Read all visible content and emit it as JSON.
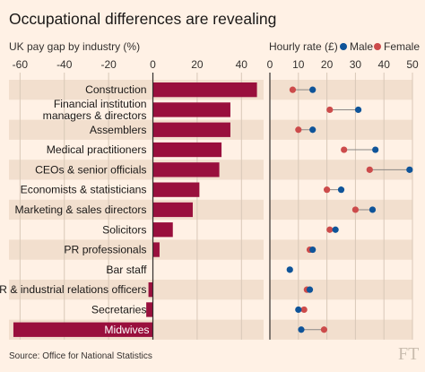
{
  "chart_data": [
    {
      "type": "bar",
      "orientation": "horizontal",
      "subtitle": "UK pay gap by industry (%)",
      "categories": [
        "Construction",
        "Financial institution managers & directors",
        "Assemblers",
        "Medical practitioners",
        "CEOs & senior officials",
        "Economists & statisticians",
        "Marketing & sales directors",
        "Solicitors",
        "PR professionals",
        "Bar staff",
        "HR & industrial relations officers",
        "Secretaries",
        "Midwives"
      ],
      "category_lines": [
        [
          "Construction"
        ],
        [
          "Financial institution",
          "managers & directors"
        ],
        [
          "Assemblers"
        ],
        [
          "Medical practitioners"
        ],
        [
          "CEOs & senior officials"
        ],
        [
          "Economists & statisticians"
        ],
        [
          "Marketing & sales directors"
        ],
        [
          "Solicitors"
        ],
        [
          "PR professionals"
        ],
        [
          "Bar staff"
        ],
        [
          "HR & industrial relations officers"
        ],
        [
          "Secretaries"
        ],
        [
          "Midwives"
        ]
      ],
      "values": [
        47,
        35,
        35,
        31,
        30,
        21,
        18,
        9,
        3,
        0,
        -2,
        -3,
        -63
      ],
      "xlim": [
        -65,
        50
      ],
      "xticks": [
        -60,
        -40,
        -20,
        0,
        20,
        40
      ],
      "bar_color": "#990f3d",
      "grid": true
    },
    {
      "type": "dot",
      "subtitle": "Hourly rate (£)",
      "series": [
        {
          "name": "Male",
          "color": "#0f5499",
          "values": [
            15,
            31,
            15,
            37,
            49,
            25,
            36,
            23,
            15,
            7,
            14,
            10,
            11
          ]
        },
        {
          "name": "Female",
          "color": "#cc4b4b",
          "values": [
            8,
            21,
            10,
            26,
            35,
            20,
            30,
            21,
            14,
            null,
            13,
            12,
            19
          ]
        }
      ],
      "xlim": [
        0,
        50
      ],
      "xticks": [
        0,
        10,
        20,
        30,
        40,
        50
      ],
      "legend": "top",
      "grid": true
    }
  ],
  "header": {
    "title": "Occupational differences are revealing"
  },
  "footer": {
    "source": "Source: Office for National Statistics",
    "logo": "FT"
  },
  "colors": {
    "background": "#fff1e5",
    "stripe": "#f2dfce",
    "bar": "#990f3d",
    "male": "#0f5499",
    "female": "#cc4b4b"
  }
}
